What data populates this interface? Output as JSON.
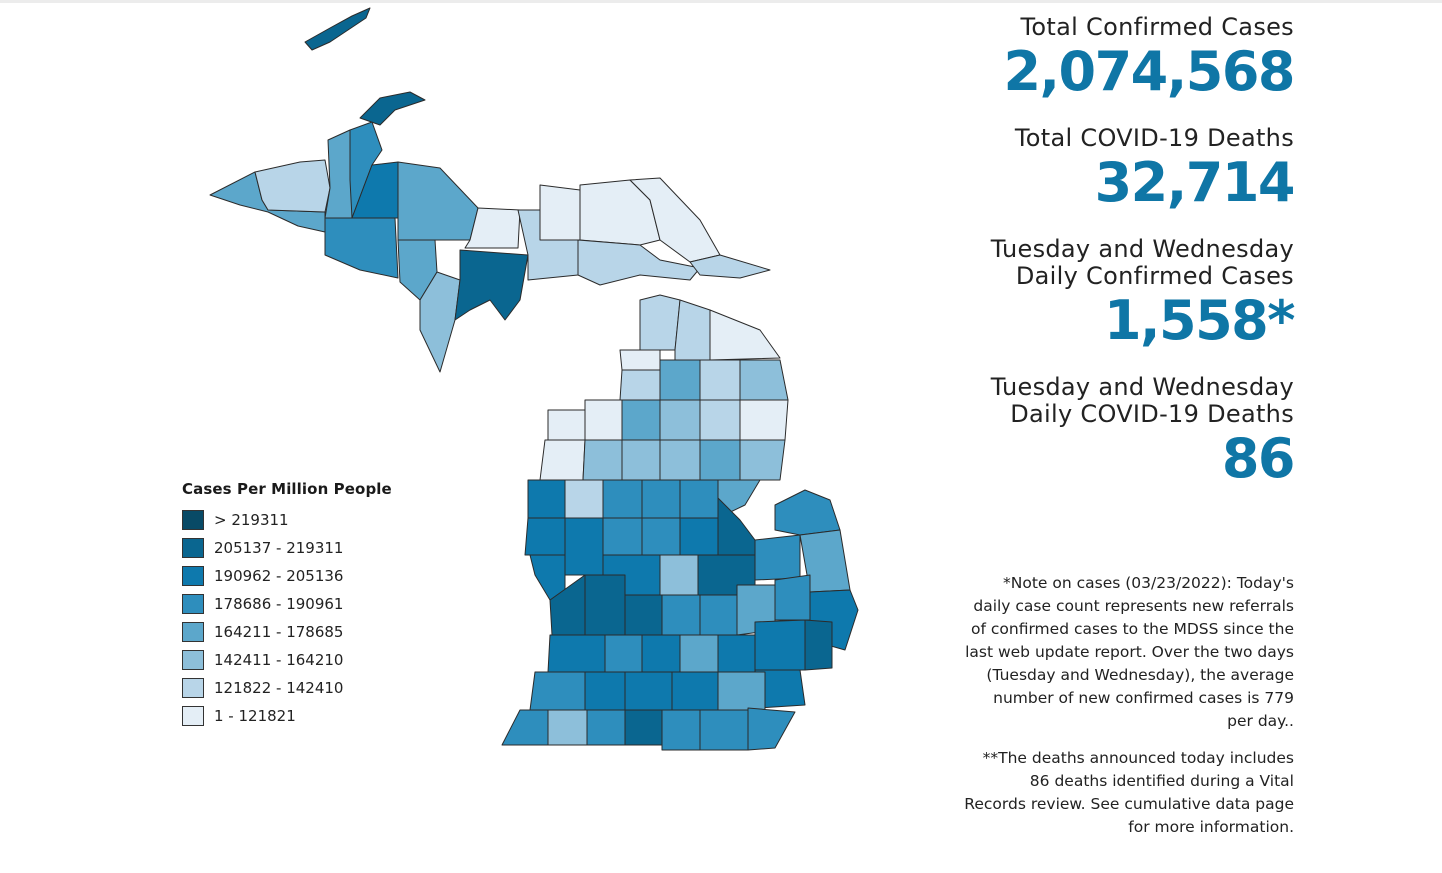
{
  "stats": [
    {
      "label": "Total Confirmed Cases",
      "value": "2,074,568"
    },
    {
      "label": "Total COVID-19 Deaths",
      "value": "32,714"
    },
    {
      "label_line1": "Tuesday and Wednesday",
      "label_line2": "Daily Confirmed Cases",
      "value": "1,558*"
    },
    {
      "label_line1": "Tuesday and Wednesday",
      "label_line2": "Daily COVID-19 Deaths",
      "value": "86"
    }
  ],
  "notes": {
    "cases_note": "*Note on cases (03/23/2022): Today's daily case count represents new referrals of confirmed cases to the MDSS since the last web update report.  Over the two days (Tuesday and Wednesday), the average number of new confirmed cases is 779 per day..",
    "deaths_note": "**The deaths announced today includes 86 deaths identified during a Vital Records review. See cumulative data page for more information."
  },
  "legend": {
    "title": "Cases Per Million People",
    "classes": [
      {
        "label": "> 219311",
        "color": "#084a66"
      },
      {
        "label": "205137 - 219311",
        "color": "#0a6690"
      },
      {
        "label": "190962 - 205136",
        "color": "#0e79ad"
      },
      {
        "label": "178686 - 190961",
        "color": "#2e8ebd"
      },
      {
        "label": "164211 - 178685",
        "color": "#5ca7cb"
      },
      {
        "label": "142411 - 164210",
        "color": "#8dbfda"
      },
      {
        "label": "121822 - 142410",
        "color": "#b8d5e8"
      },
      {
        "label": "1 - 121821",
        "color": "#e4eef6"
      }
    ]
  },
  "map": {
    "type": "choropleth",
    "region": "Michigan counties"
  }
}
